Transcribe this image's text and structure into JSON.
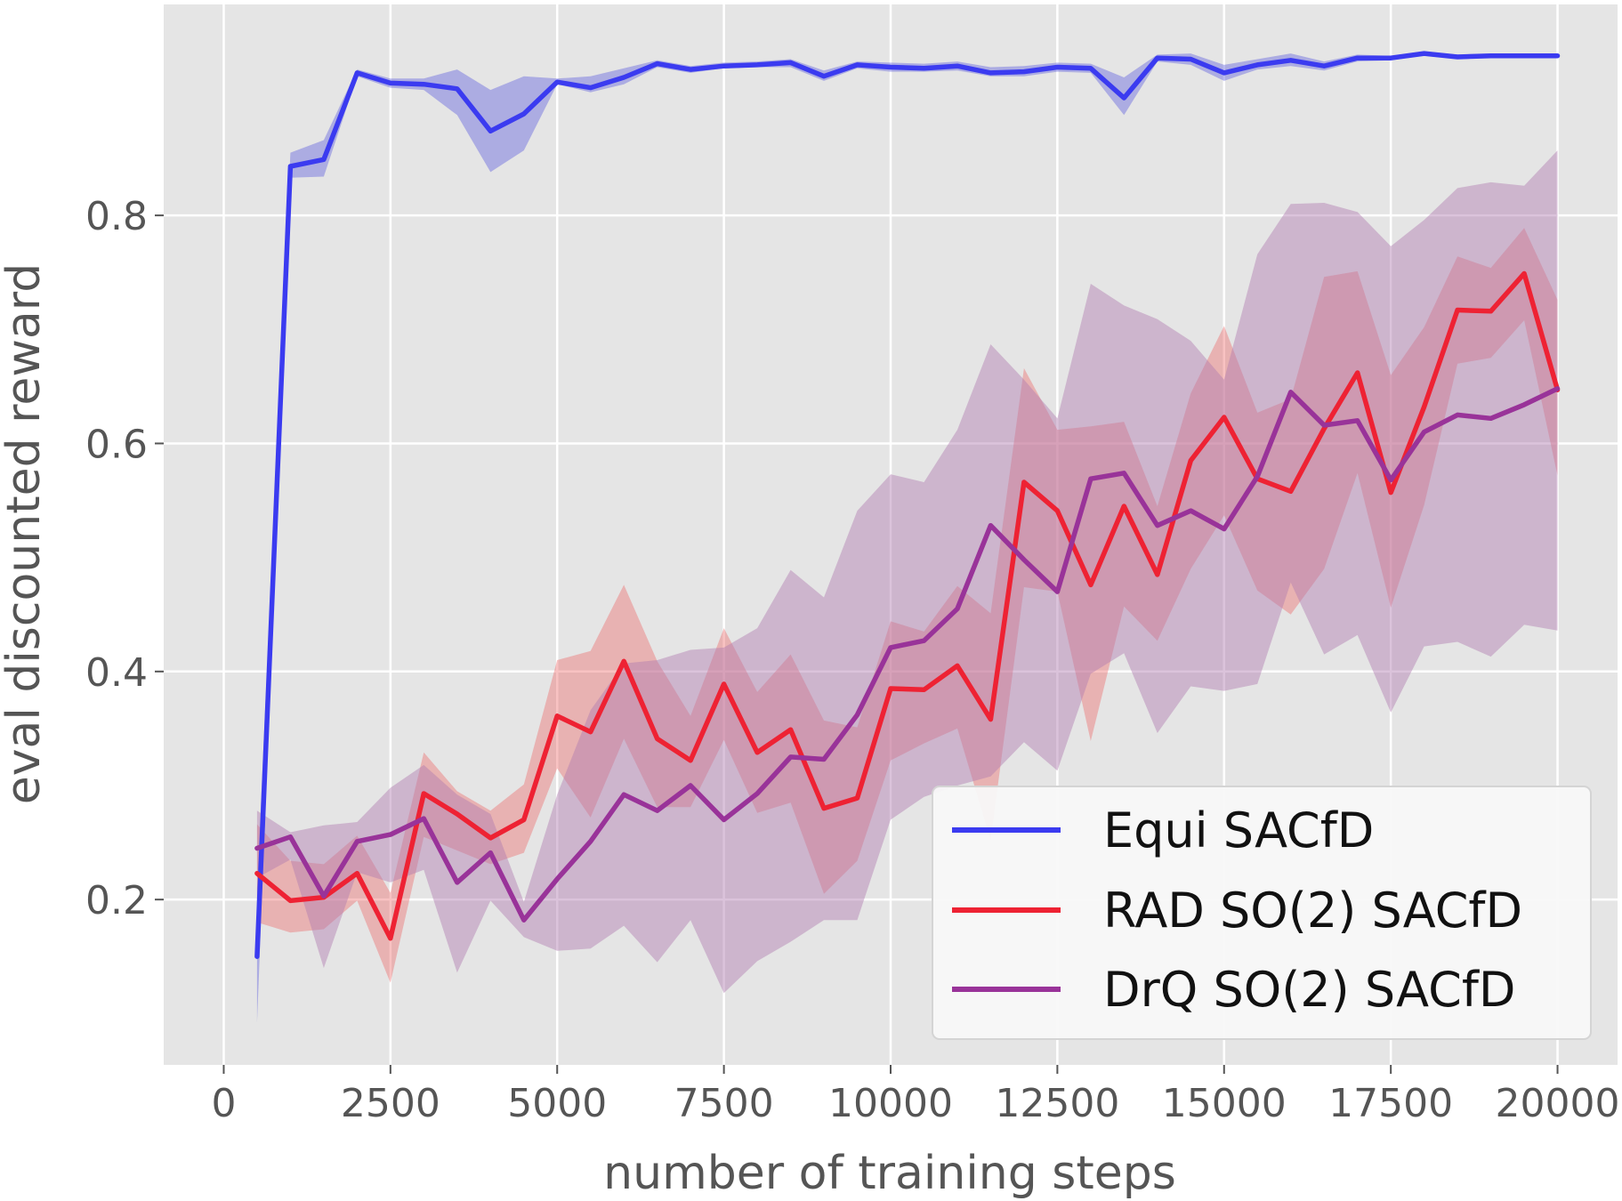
{
  "chart_data": {
    "type": "line",
    "title": "",
    "xlabel": "number of training steps",
    "ylabel": "eval discounted reward",
    "xlim": [
      -900,
      20900
    ],
    "ylim": [
      0.055,
      0.985
    ],
    "x_ticks": [
      0,
      2500,
      5000,
      7500,
      10000,
      12500,
      15000,
      17500,
      20000
    ],
    "y_ticks": [
      0.2,
      0.4,
      0.6,
      0.8
    ],
    "x_tick_labels": [
      "0",
      "2500",
      "5000",
      "7500",
      "10000",
      "12500",
      "15000",
      "17500",
      "20000"
    ],
    "y_tick_labels": [
      "0.2",
      "0.4",
      "0.6",
      "0.8"
    ],
    "grid": true,
    "legend_position": "lower-right",
    "x": [
      500,
      1000,
      1500,
      2000,
      2500,
      3000,
      3500,
      4000,
      4500,
      5000,
      5500,
      6000,
      6500,
      7000,
      7500,
      8000,
      8500,
      9000,
      9500,
      10000,
      10500,
      11000,
      11500,
      12000,
      12500,
      13000,
      13500,
      14000,
      14500,
      15000,
      15500,
      16000,
      16500,
      17000,
      17500,
      18000,
      18500,
      19000,
      19500,
      20000
    ],
    "series": [
      {
        "name": "Equi SACfD",
        "color": "#3b3bf0",
        "fill_color": "#6666dd",
        "fill_opacity": 0.45,
        "values": [
          0.15,
          0.843,
          0.849,
          0.925,
          0.916,
          0.915,
          0.911,
          0.874,
          0.889,
          0.917,
          0.912,
          0.921,
          0.933,
          0.928,
          0.931,
          0.932,
          0.934,
          0.922,
          0.932,
          0.93,
          0.929,
          0.931,
          0.925,
          0.926,
          0.93,
          0.929,
          0.903,
          0.938,
          0.937,
          0.925,
          0.932,
          0.936,
          0.931,
          0.938,
          0.938,
          0.942,
          0.939,
          0.94,
          0.94,
          0.94
        ],
        "lower": [
          0.092,
          0.833,
          0.834,
          0.922,
          0.912,
          0.91,
          0.888,
          0.838,
          0.857,
          0.915,
          0.908,
          0.915,
          0.93,
          0.925,
          0.929,
          0.93,
          0.93,
          0.918,
          0.929,
          0.926,
          0.926,
          0.927,
          0.922,
          0.922,
          0.926,
          0.925,
          0.888,
          0.935,
          0.932,
          0.918,
          0.928,
          0.931,
          0.927,
          0.935,
          0.936,
          0.94,
          0.937,
          0.938,
          0.938,
          0.938
        ],
        "upper": [
          0.21,
          0.855,
          0.866,
          0.928,
          0.92,
          0.92,
          0.928,
          0.91,
          0.922,
          0.92,
          0.922,
          0.929,
          0.936,
          0.931,
          0.934,
          0.935,
          0.937,
          0.927,
          0.935,
          0.934,
          0.933,
          0.935,
          0.93,
          0.931,
          0.934,
          0.933,
          0.921,
          0.941,
          0.942,
          0.932,
          0.937,
          0.942,
          0.935,
          0.941,
          0.94,
          0.944,
          0.941,
          0.942,
          0.942,
          0.942
        ]
      },
      {
        "name": "RAD SO(2) SACfD",
        "color": "#ee2233",
        "fill_color": "#ee6666",
        "fill_opacity": 0.4,
        "values": [
          0.223,
          0.199,
          0.202,
          0.223,
          0.166,
          0.293,
          0.275,
          0.254,
          0.27,
          0.361,
          0.347,
          0.409,
          0.341,
          0.322,
          0.389,
          0.329,
          0.349,
          0.28,
          0.289,
          0.385,
          0.384,
          0.405,
          0.358,
          0.566,
          0.541,
          0.476,
          0.545,
          0.485,
          0.585,
          0.623,
          0.569,
          0.558,
          0.613,
          0.662,
          0.557,
          0.632,
          0.717,
          0.716,
          0.749,
          0.647
        ],
        "lower": [
          0.18,
          0.171,
          0.174,
          0.199,
          0.127,
          0.255,
          0.243,
          0.231,
          0.241,
          0.315,
          0.272,
          0.341,
          0.281,
          0.281,
          0.34,
          0.276,
          0.285,
          0.205,
          0.234,
          0.322,
          0.337,
          0.35,
          0.252,
          0.474,
          0.47,
          0.339,
          0.457,
          0.427,
          0.49,
          0.537,
          0.471,
          0.45,
          0.49,
          0.574,
          0.456,
          0.546,
          0.67,
          0.675,
          0.708,
          0.572
        ],
        "upper": [
          0.266,
          0.234,
          0.231,
          0.256,
          0.206,
          0.329,
          0.295,
          0.278,
          0.301,
          0.41,
          0.418,
          0.476,
          0.409,
          0.361,
          0.438,
          0.382,
          0.415,
          0.357,
          0.351,
          0.444,
          0.435,
          0.475,
          0.451,
          0.666,
          0.612,
          0.615,
          0.619,
          0.545,
          0.644,
          0.703,
          0.627,
          0.639,
          0.746,
          0.751,
          0.66,
          0.702,
          0.764,
          0.754,
          0.789,
          0.726
        ]
      },
      {
        "name": "DrQ SO(2) SACfD",
        "color": "#993399",
        "fill_color": "#b07ab0",
        "fill_opacity": 0.45,
        "values": [
          0.245,
          0.255,
          0.203,
          0.251,
          0.257,
          0.271,
          0.215,
          0.241,
          0.182,
          0.218,
          0.251,
          0.292,
          0.278,
          0.3,
          0.27,
          0.293,
          0.325,
          0.323,
          0.362,
          0.421,
          0.427,
          0.455,
          0.528,
          0.498,
          0.47,
          0.569,
          0.574,
          0.528,
          0.541,
          0.525,
          0.571,
          0.645,
          0.616,
          0.62,
          0.568,
          0.61,
          0.625,
          0.622,
          0.634,
          0.648
        ],
        "lower": [
          0.219,
          0.235,
          0.14,
          0.224,
          0.215,
          0.226,
          0.136,
          0.199,
          0.167,
          0.155,
          0.157,
          0.177,
          0.145,
          0.182,
          0.118,
          0.146,
          0.163,
          0.182,
          0.182,
          0.27,
          0.29,
          0.3,
          0.308,
          0.338,
          0.313,
          0.398,
          0.416,
          0.346,
          0.387,
          0.383,
          0.389,
          0.478,
          0.415,
          0.432,
          0.364,
          0.422,
          0.426,
          0.413,
          0.441,
          0.436
        ],
        "upper": [
          0.278,
          0.259,
          0.265,
          0.268,
          0.298,
          0.318,
          0.292,
          0.275,
          0.198,
          0.292,
          0.366,
          0.407,
          0.41,
          0.419,
          0.421,
          0.438,
          0.489,
          0.465,
          0.541,
          0.573,
          0.566,
          0.612,
          0.687,
          0.656,
          0.622,
          0.74,
          0.721,
          0.709,
          0.69,
          0.656,
          0.766,
          0.81,
          0.811,
          0.803,
          0.773,
          0.796,
          0.824,
          0.829,
          0.826,
          0.857
        ]
      }
    ]
  }
}
